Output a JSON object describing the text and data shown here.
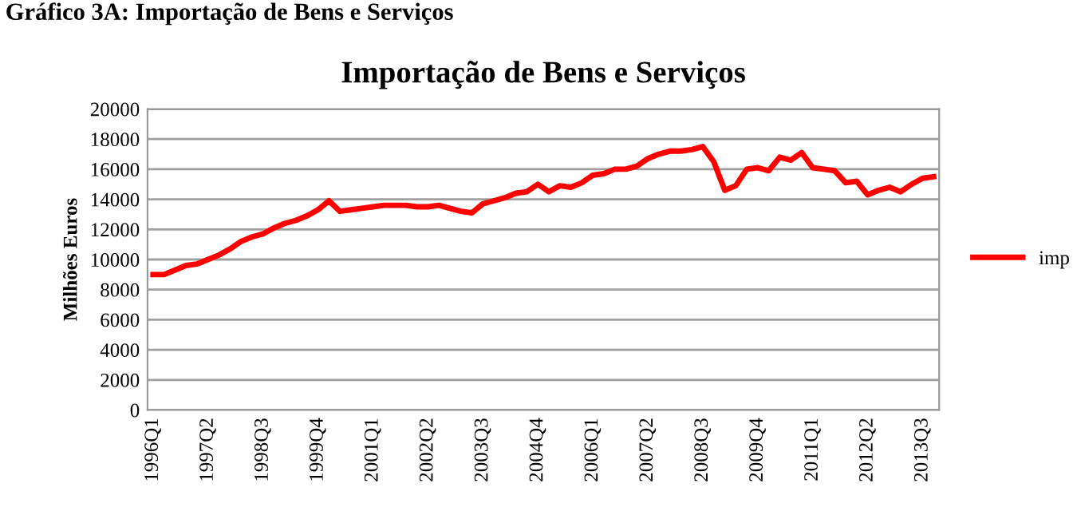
{
  "chart_data": {
    "type": "line",
    "title": "Importação de Bens e Serviços",
    "ylabel": "Milhões Euros",
    "annotations": [
      "Gráfico 3A: Importação de Bens e Serviços"
    ],
    "categories": [
      "1996Q1",
      null,
      null,
      null,
      null,
      "1997Q2",
      null,
      null,
      null,
      null,
      "1998Q3",
      null,
      null,
      null,
      null,
      "1999Q4",
      null,
      null,
      null,
      null,
      "2001Q1",
      null,
      null,
      null,
      null,
      "2002Q2",
      null,
      null,
      null,
      null,
      "2003Q3",
      null,
      null,
      null,
      null,
      "2004Q4",
      null,
      null,
      null,
      null,
      "2006Q1",
      null,
      null,
      null,
      null,
      "2007Q2",
      null,
      null,
      null,
      null,
      "2008Q3",
      null,
      null,
      null,
      null,
      "2009Q4",
      null,
      null,
      null,
      null,
      "2011Q1",
      null,
      null,
      null,
      null,
      "2012Q2",
      null,
      null,
      null,
      null,
      "2013Q3",
      null
    ],
    "series": [
      {
        "name": "imp",
        "color": "#ff0000",
        "values": [
          9000,
          9000,
          9300,
          9600,
          9700,
          10000,
          10300,
          10700,
          11200,
          11500,
          11700,
          12100,
          12400,
          12600,
          12900,
          13300,
          13900,
          13200,
          13300,
          13400,
          13500,
          13600,
          13600,
          13600,
          13500,
          13500,
          13600,
          13400,
          13200,
          13100,
          13700,
          13900,
          14100,
          14400,
          14500,
          15000,
          14500,
          14900,
          14800,
          15100,
          15600,
          15700,
          16000,
          16000,
          16200,
          16700,
          17000,
          17200,
          17200,
          17300,
          17500,
          16500,
          14600,
          14900,
          16000,
          16100,
          15900,
          16800,
          16600,
          17100,
          16100,
          16000,
          15900,
          15100,
          15200,
          14300,
          14600,
          14800,
          14500,
          15000,
          15400,
          15500
        ]
      }
    ],
    "ylim": [
      0,
      20000
    ],
    "yticks": [
      0,
      2000,
      4000,
      6000,
      8000,
      10000,
      12000,
      14000,
      16000,
      18000,
      20000
    ],
    "grid": "y",
    "legend": "right",
    "marker": "none",
    "line_style": "solid"
  }
}
